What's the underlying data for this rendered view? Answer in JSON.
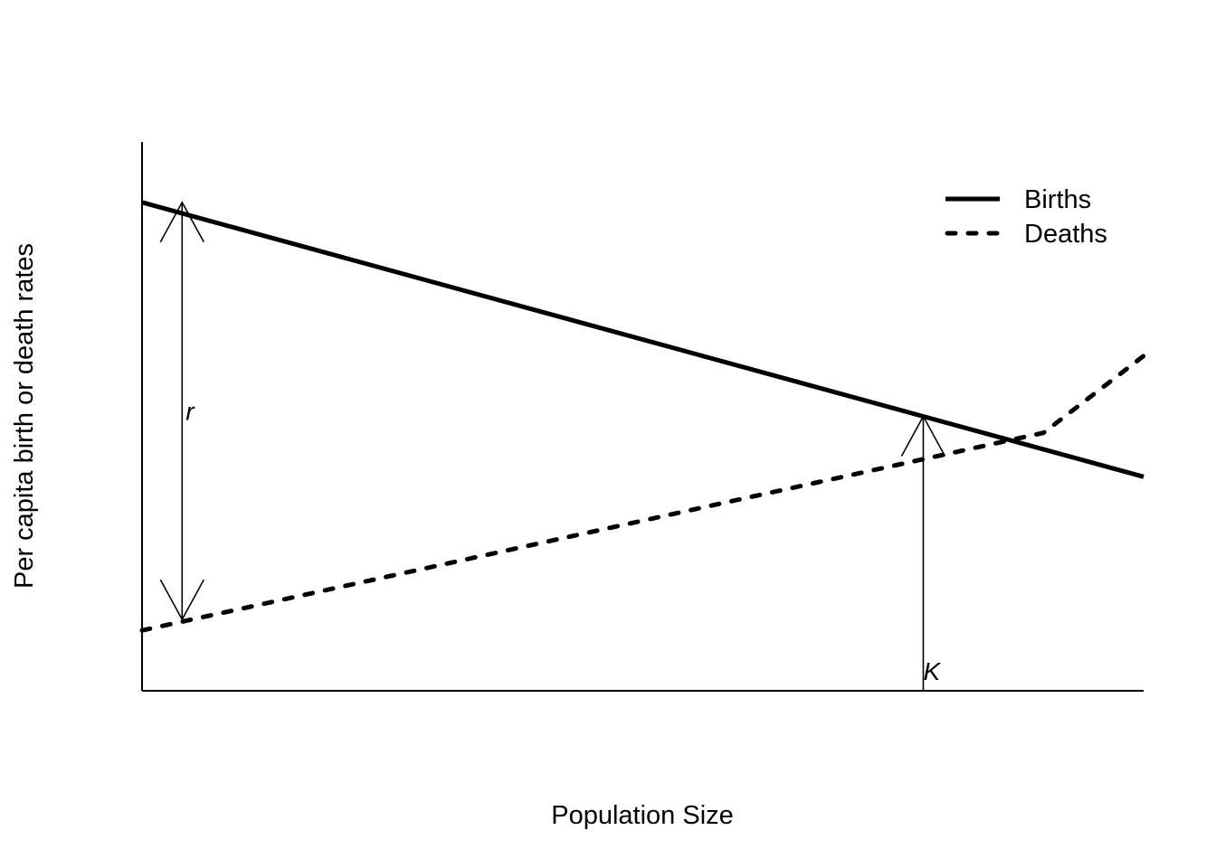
{
  "chart_data": {
    "type": "line",
    "title": "",
    "xlabel": "Population Size",
    "ylabel": "Per capita birth or death rates",
    "xlim": [
      0,
      1
    ],
    "ylim": [
      0,
      1
    ],
    "axes_ticks": false,
    "grid": false,
    "legend_position": "top-right",
    "series": [
      {
        "name": "Births",
        "style": "solid",
        "x": [
          0,
          1
        ],
        "y": [
          0.89,
          0.39
        ]
      },
      {
        "name": "Deaths",
        "style": "dotted",
        "x": [
          0,
          0.1,
          0.2,
          0.3,
          0.4,
          0.5,
          0.6,
          0.7,
          0.8,
          0.9,
          1.0
        ],
        "y": [
          0.11,
          0.15,
          0.19,
          0.23,
          0.27,
          0.31,
          0.35,
          0.39,
          0.43,
          0.47,
          0.61
        ]
      }
    ],
    "annotations": [
      {
        "label": "r",
        "x": 0.04,
        "from_y": 0.89,
        "to_y": 0.13
      },
      {
        "label": "K",
        "x": 0.78,
        "from_y": 0.0,
        "to_y": 0.5
      }
    ]
  }
}
